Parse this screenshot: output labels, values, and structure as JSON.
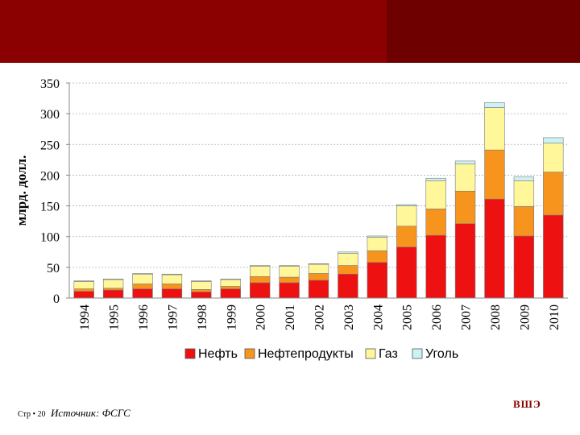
{
  "slide": {
    "page_label": "Стр",
    "page_number": "20",
    "source": "Источник: ФСГС",
    "brand": "ВШЭ"
  },
  "colors": {
    "banner": "#8b0000",
    "banner_right": "#6e0000",
    "oil": "#ee1111",
    "oil_products": "#f7941d",
    "gas": "#fff799",
    "coal": "#ccf2f5"
  },
  "chart_data": {
    "type": "bar",
    "stacked": true,
    "title": "",
    "xlabel": "",
    "ylabel": "млрд. долл.",
    "ylim": [
      0,
      350
    ],
    "yticks": [
      0,
      50,
      100,
      150,
      200,
      250,
      300,
      350
    ],
    "grid": true,
    "legend": "bottom",
    "categories": [
      "1994",
      "1995",
      "1996",
      "1997",
      "1998",
      "1999",
      "2000",
      "2001",
      "2002",
      "2003",
      "2004",
      "2005",
      "2006",
      "2007",
      "2008",
      "2009",
      "2010"
    ],
    "series": [
      {
        "name": "Нефть",
        "color": "#ee1111",
        "values": [
          11,
          13,
          15,
          15,
          10,
          15,
          25,
          25,
          29,
          39,
          58,
          83,
          102,
          121,
          161,
          101,
          135
        ]
      },
      {
        "name": "Нефтепродукты",
        "color": "#f7941d",
        "values": [
          4,
          3,
          8,
          8,
          4,
          4,
          10,
          9,
          11,
          14,
          19,
          34,
          43,
          53,
          80,
          48,
          70
        ]
      },
      {
        "name": "Газ",
        "color": "#fff799",
        "values": [
          12,
          14,
          16,
          15,
          13,
          11,
          17,
          18,
          15,
          20,
          22,
          33,
          46,
          44,
          69,
          42,
          47
        ]
      },
      {
        "name": "Уголь",
        "color": "#ccf2f5",
        "values": [
          1,
          1,
          1,
          1,
          1,
          1,
          1,
          1,
          1,
          2,
          2,
          2,
          4,
          5,
          8,
          6,
          9
        ]
      }
    ]
  }
}
